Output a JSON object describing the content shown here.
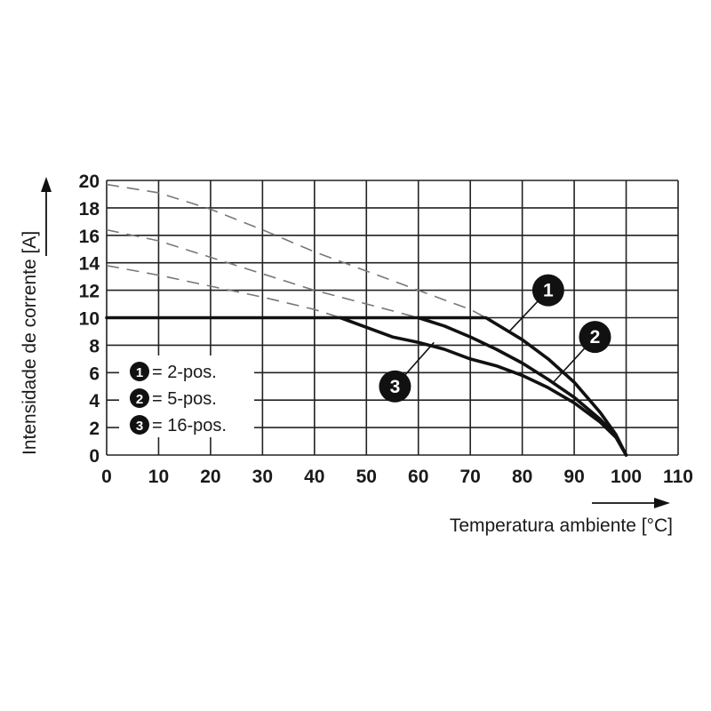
{
  "chart_data": {
    "type": "line",
    "xlabel": "Temperatura ambiente [°C]",
    "ylabel": "Intensidade de corrente [A]",
    "xlim": [
      0,
      110
    ],
    "ylim": [
      0,
      20
    ],
    "x_ticks": [
      "0",
      "10",
      "20",
      "30",
      "40",
      "50",
      "60",
      "70",
      "80",
      "90",
      "100",
      "110"
    ],
    "y_ticks": [
      "0",
      "2",
      "4",
      "6",
      "8",
      "10",
      "12",
      "14",
      "16",
      "18",
      "20"
    ],
    "grid": true,
    "legend_placement": "bottom-left",
    "series": [
      {
        "name": "2-pos.",
        "marker": "1",
        "solid": [
          [
            0,
            10
          ],
          [
            10,
            10
          ],
          [
            20,
            10
          ],
          [
            30,
            10
          ],
          [
            40,
            10
          ],
          [
            50,
            10
          ],
          [
            60,
            10
          ],
          [
            70,
            10
          ],
          [
            73,
            10
          ],
          [
            80,
            8.4
          ],
          [
            85,
            7.0
          ],
          [
            90,
            5.3
          ],
          [
            95,
            3.1
          ],
          [
            98,
            1.5
          ],
          [
            100,
            0
          ]
        ],
        "dashed": [
          [
            0,
            19.7
          ],
          [
            10,
            19.1
          ],
          [
            20,
            17.9
          ],
          [
            30,
            16.4
          ],
          [
            40,
            14.8
          ],
          [
            50,
            13.4
          ],
          [
            60,
            12.0
          ],
          [
            70,
            10.6
          ],
          [
            73,
            10
          ]
        ]
      },
      {
        "name": "5-pos.",
        "marker": "2",
        "solid": [
          [
            60,
            10
          ],
          [
            65,
            9.4
          ],
          [
            70,
            8.6
          ],
          [
            75,
            7.7
          ],
          [
            80,
            6.7
          ],
          [
            85,
            5.5
          ],
          [
            90,
            4.2
          ],
          [
            95,
            2.6
          ],
          [
            98,
            1.4
          ],
          [
            100,
            0
          ]
        ],
        "dashed": [
          [
            0,
            16.4
          ],
          [
            10,
            15.6
          ],
          [
            20,
            14.4
          ],
          [
            30,
            13.2
          ],
          [
            40,
            12.0
          ],
          [
            50,
            11.0
          ],
          [
            60,
            10
          ]
        ]
      },
      {
        "name": "16-pos.",
        "marker": "3",
        "solid": [
          [
            45,
            10
          ],
          [
            50,
            9.3
          ],
          [
            55,
            8.6
          ],
          [
            60,
            8.2
          ],
          [
            65,
            7.7
          ],
          [
            70,
            7.0
          ],
          [
            75,
            6.5
          ],
          [
            80,
            5.8
          ],
          [
            85,
            4.9
          ],
          [
            90,
            3.8
          ],
          [
            95,
            2.4
          ],
          [
            98,
            1.3
          ],
          [
            100,
            0
          ]
        ],
        "dashed": [
          [
            0,
            13.8
          ],
          [
            10,
            13.1
          ],
          [
            20,
            12.3
          ],
          [
            30,
            11.5
          ],
          [
            40,
            10.6
          ],
          [
            45,
            10
          ]
        ]
      }
    ]
  },
  "legend": [
    {
      "marker": "1",
      "text": "= 2-pos."
    },
    {
      "marker": "2",
      "text": "= 5-pos."
    },
    {
      "marker": "3",
      "text": "= 16-pos."
    }
  ],
  "colors": {
    "line": "#111111",
    "dashed": "#777777",
    "grid": "#222222",
    "badge": "#111111"
  }
}
